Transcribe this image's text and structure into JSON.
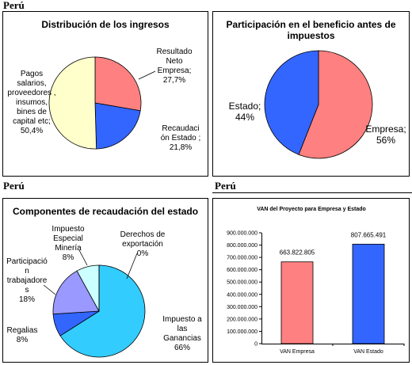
{
  "section_labels": [
    "Perú",
    "Perú",
    "Perú"
  ],
  "chart_data": [
    {
      "type": "pie",
      "title": "Distribución de los ingresos",
      "categories": [
        "Resultado Neto Empresa;",
        "Recaudación Estado ;",
        "Pagos salarios, proveedores , insumos, bines de capital etc;"
      ],
      "values": [
        27.7,
        21.8,
        50.4
      ],
      "value_labels": [
        "27,7%",
        "21,8%",
        "50,4%"
      ],
      "colors": [
        "#ff8080",
        "#3366ff",
        "#ffffcc"
      ]
    },
    {
      "type": "pie",
      "title": "Participación en el beneficio antes de impuestos",
      "categories": [
        "Empresa;",
        "Estado;"
      ],
      "values": [
        56,
        44
      ],
      "value_labels": [
        "56%",
        "44%"
      ],
      "colors": [
        "#ff8080",
        "#3366ff"
      ]
    },
    {
      "type": "pie",
      "title": "Componentes de recaudación del estado",
      "categories": [
        "Impuesto a las Ganancias",
        "Regalias",
        "Participación trabajadores",
        "Impuesto Especial Minería",
        "Derechos de exportación"
      ],
      "values": [
        66,
        8,
        18,
        8,
        0
      ],
      "value_labels": [
        "66%",
        "8%",
        "18%",
        "8%",
        "0%"
      ],
      "colors": [
        "#33ccff",
        "#3366ff",
        "#9999ff",
        "#ccffff",
        "#ffffff"
      ]
    },
    {
      "type": "bar",
      "title": "VAN del Proyecto para Empresa y Estado",
      "categories": [
        "VAN Empresa",
        "VAN Estado"
      ],
      "values": [
        663822805,
        807665491
      ],
      "value_labels": [
        "663.822.805",
        "807.665.491"
      ],
      "colors": [
        "#ff8080",
        "#3366ff"
      ],
      "ylim": [
        0,
        900000000
      ],
      "yticks": [
        0,
        {
          "value": 100000000,
          "label": "100.000.000"
        },
        {
          "value": 200000000,
          "label": "200.000.000"
        },
        {
          "value": 300000000,
          "label": "300.000.000"
        },
        {
          "value": 400000000,
          "label": "400.000.000"
        },
        {
          "value": 500000000,
          "label": "500.000.000"
        },
        {
          "value": 600000000,
          "label": "600.000.000"
        },
        {
          "value": 700000000,
          "label": "700.000.000"
        },
        {
          "value": 800000000,
          "label": "800.000.000"
        },
        {
          "value": 900000000,
          "label": "900.000.000"
        }
      ]
    }
  ]
}
